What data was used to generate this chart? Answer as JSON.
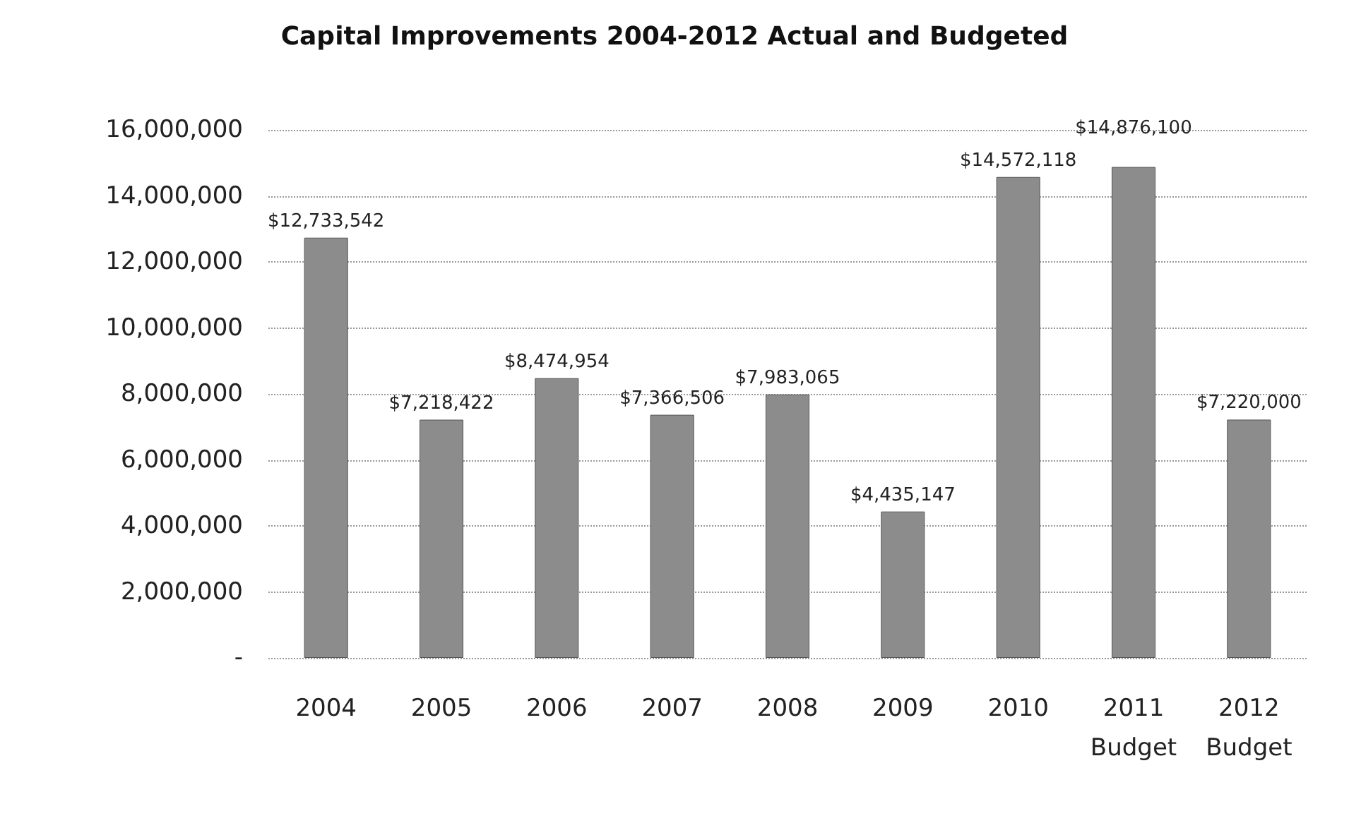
{
  "chart_data": {
    "type": "bar",
    "title": "Capital Improvements 2004-2012 Actual and Budgeted",
    "categories": [
      "2004",
      "2005",
      "2006",
      "2007",
      "2008",
      "2009",
      "2010",
      "2011\nBudget",
      "2012\nBudget"
    ],
    "values": [
      12733542,
      7218422,
      8474954,
      7366506,
      7983065,
      4435147,
      14572118,
      14876100,
      7220000
    ],
    "value_labels": [
      "$12,733,542",
      "$7,218,422",
      "$8,474,954",
      "$7,366,506",
      "$7,983,065",
      "$4,435,147",
      "$14,572,118",
      "$14,876,100",
      "$7,220,000"
    ],
    "color": "#8c8c8c",
    "ylim": [
      0,
      16000000
    ],
    "yticks": [
      {
        "value": 0,
        "label": "-"
      },
      {
        "value": 2000000,
        "label": "2,000,000"
      },
      {
        "value": 4000000,
        "label": "4,000,000"
      },
      {
        "value": 6000000,
        "label": "6,000,000"
      },
      {
        "value": 8000000,
        "label": "8,000,000"
      },
      {
        "value": 10000000,
        "label": "10,000,000"
      },
      {
        "value": 12000000,
        "label": "12,000,000"
      },
      {
        "value": 14000000,
        "label": "14,000,000"
      },
      {
        "value": 16000000,
        "label": "16,000,000"
      }
    ],
    "grid": "y"
  }
}
